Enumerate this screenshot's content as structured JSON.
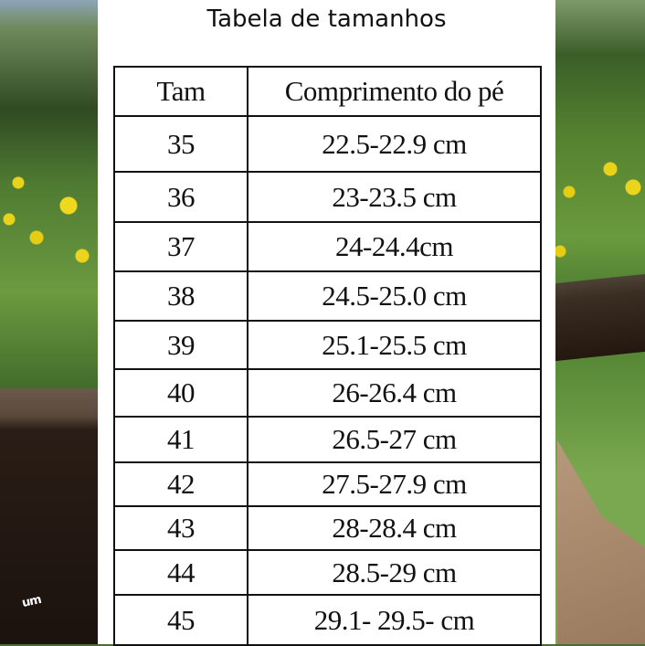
{
  "title": "Tabela de tamanhos",
  "headers": [
    "Tam",
    "Comprimento do pé"
  ],
  "rows": [
    {
      "tam": "35",
      "length": "22.5-22.9 cm"
    },
    {
      "tam": "36",
      "length": "23-23.5 cm"
    },
    {
      "tam": "37",
      "length": "24-24.4cm"
    },
    {
      "tam": "38",
      "length": "24.5-25.0 cm"
    },
    {
      "tam": "39",
      "length": "25.1-25.5 cm"
    },
    {
      "tam": "40",
      "length": "26-26.4 cm"
    },
    {
      "tam": "41",
      "length": "26.5-27 cm"
    },
    {
      "tam": "42",
      "length": "27.5-27.9 cm"
    },
    {
      "tam": "43",
      "length": "28-28.4 cm"
    },
    {
      "tam": "44",
      "length": "28.5-29 cm"
    },
    {
      "tam": "45",
      "length": "29.1- 29.5- cm"
    }
  ],
  "logo": "um"
}
